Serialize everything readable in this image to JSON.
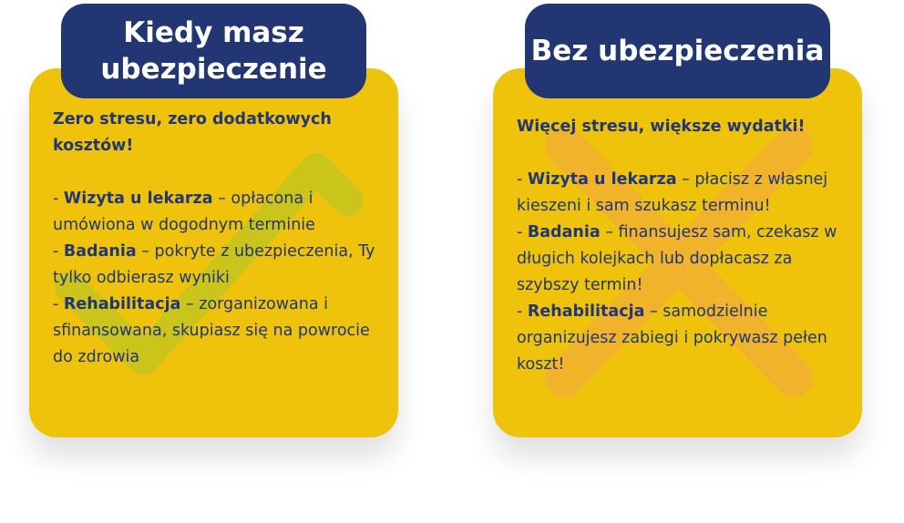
{
  "colors": {
    "navy": "#213673",
    "yellow": "#efc30c",
    "check": "#c6c41c",
    "cross": "#f2b22e"
  },
  "left": {
    "title": "Kiedy masz ubezpieczenie",
    "icon": "check-icon",
    "lead": "Zero stresu, zero dodatkowych kosztów!",
    "items": [
      {
        "label": "Wizyta u lekarza",
        "text": " – opłacona i umówiona w dogodnym terminie"
      },
      {
        "label": "Badania",
        "text": " – pokryte z ubezpieczenia, Ty tylko odbierasz wyniki"
      },
      {
        "label": "Rehabilitacja",
        "text": " – zorganizowana i sfinansowana, skupiasz się na powrocie do zdrowia"
      }
    ]
  },
  "right": {
    "title": "Bez ubezpieczenia",
    "icon": "cross-icon",
    "lead": "Więcej stresu, większe wydatki!",
    "items": [
      {
        "label": "Wizyta u lekarza",
        "text": " – płacisz z własnej kieszeni i sam szukasz terminu!"
      },
      {
        "label": "Badania",
        "text": " – finansujesz sam, czekasz w długich kolejkach lub dopłacasz za szybszy termin!"
      },
      {
        "label": "Rehabilitacja",
        "text": " – samodzielnie organizujesz zabiegi i pokrywasz pełen koszt!"
      }
    ]
  },
  "dash": "- "
}
